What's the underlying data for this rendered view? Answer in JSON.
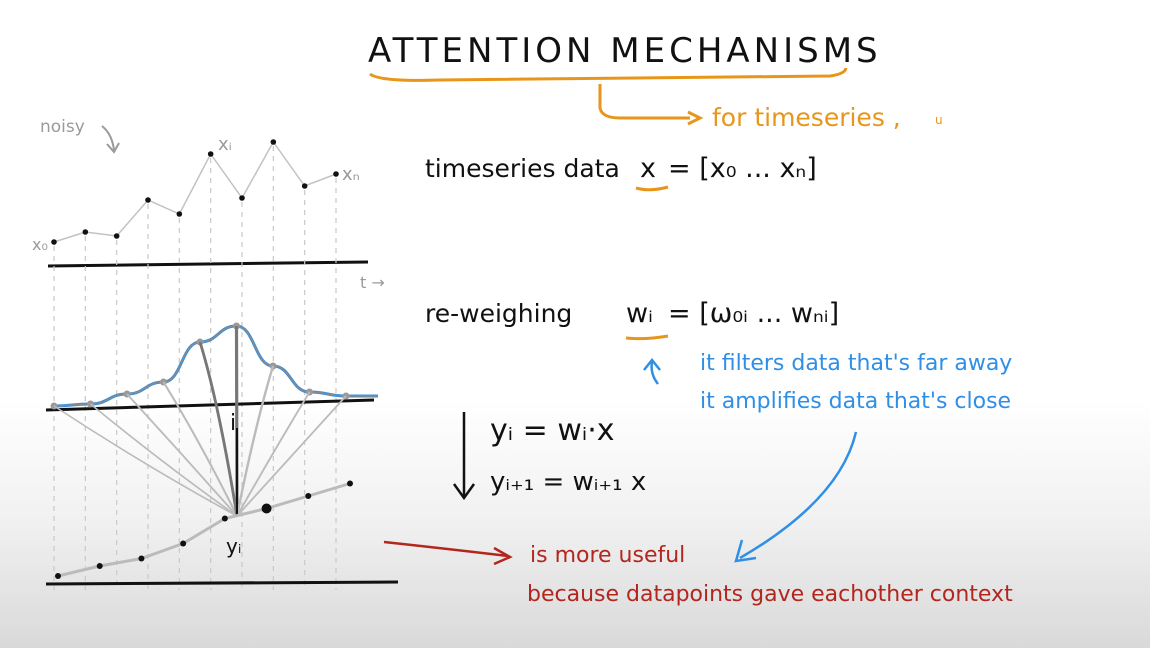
{
  "title": "ATTENTION  MECHANISMS",
  "subtitle": "for timeseries ,",
  "subtitle_extra": "u",
  "labels": {
    "noisy": "noisy",
    "x0": "x₀",
    "xi": "xᵢ",
    "xn": "xₙ",
    "t": "t →",
    "i": "i",
    "yi": "yᵢ"
  },
  "equations": {
    "timeseries": "timeseries data",
    "x_var": "x",
    "x_def": "= [x₀ ... xₙ]",
    "reweigh": "re-weighing",
    "w_var": "wᵢ",
    "w_def": "= [ω₀ᵢ ... wₙᵢ]",
    "yi_eq": "yᵢ = wᵢ·x",
    "yi1_eq": "yᵢ₊₁ = wᵢ₊₁ x"
  },
  "notes": {
    "filter": "it filters data that's far away",
    "amplify": "it amplifies data that's close",
    "useful": "is more useful",
    "context": "because datapoints gave eachother context"
  },
  "colors": {
    "ink": "#111111",
    "orange": "#e8961a",
    "blue": "#2f8fe6",
    "red": "#b3261e",
    "gray": "#9a9a9a"
  },
  "series": {
    "noisy_points": [
      0.4,
      0.65,
      0.55,
      1.45,
      1.1,
      2.6,
      1.5,
      2.9,
      1.8,
      2.1
    ],
    "gaussian_points": [
      0.0,
      0.05,
      0.3,
      0.6,
      1.6,
      2.0,
      1.0,
      0.35,
      0.25
    ],
    "output_points": [
      0.0,
      0.2,
      0.35,
      0.65,
      1.15,
      1.35,
      1.6,
      1.85
    ]
  }
}
